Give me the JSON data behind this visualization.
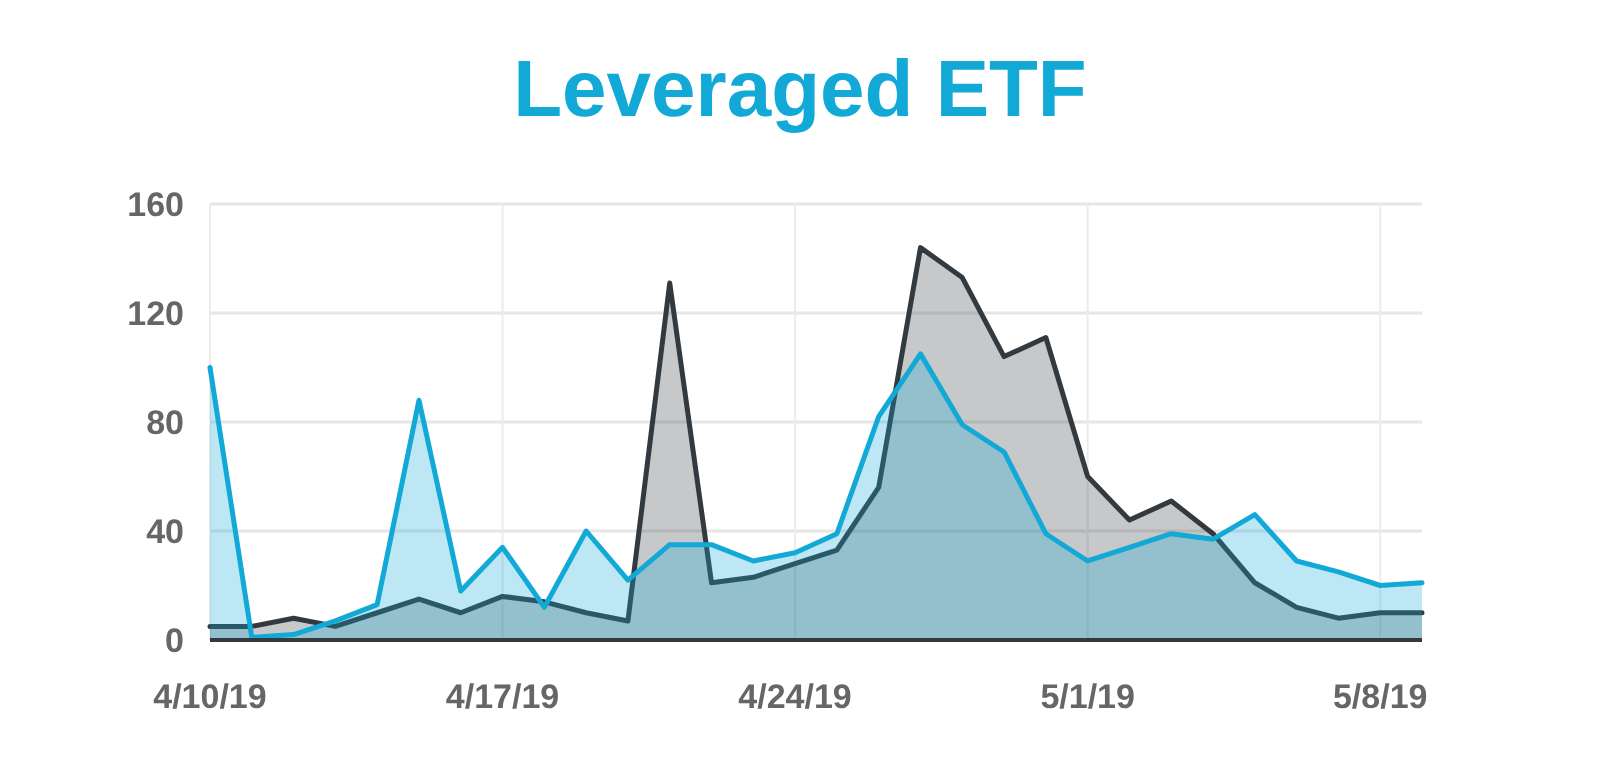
{
  "chart_data": {
    "type": "area",
    "title": "Leveraged ETF",
    "x": [
      "--04-10",
      "--04-11",
      "--04-12",
      "--04-13",
      "--04-14",
      "--04-15",
      "--04-16",
      "--04-17",
      "--04-18",
      "--04-19",
      "--04-20",
      "--04-21",
      "--04-22",
      "--04-23",
      "--04-24",
      "--04-25",
      "--04-26",
      "--04-27",
      "--04-28",
      "--04-29",
      "--04-30",
      "--05-01",
      "--05-02",
      "--05-03",
      "--05-04",
      "--05-05",
      "--05-06",
      "--05-07",
      "--05-08",
      "--05-09"
    ],
    "series": [
      {
        "color": "#333a3f",
        "values": [
          5,
          5,
          8,
          5,
          10,
          15,
          10,
          16,
          14,
          10,
          7,
          131,
          21,
          23,
          28,
          33,
          56,
          144,
          133,
          104,
          111,
          60,
          44,
          51,
          39,
          21,
          12,
          8,
          10,
          10
        ]
      },
      {
        "color": "#12a9d6",
        "values": [
          100,
          1,
          2,
          7,
          13,
          88,
          18,
          34,
          12,
          40,
          22,
          35,
          35,
          29,
          32,
          39,
          82,
          105,
          79,
          69,
          39,
          29,
          34,
          39,
          37,
          46,
          29,
          25,
          20,
          21
        ]
      }
    ],
    "xlim": [
      "--04-10",
      "--05-09"
    ],
    "xticks": [
      {
        "value": "--04-10",
        "label": "4/10/19"
      },
      {
        "value": "--04-17",
        "label": "4/17/19"
      },
      {
        "value": "--04-24",
        "label": "4/24/19"
      },
      {
        "value": "--05-01",
        "label": "5/1/19"
      },
      {
        "value": "--05-08",
        "label": "5/8/19"
      }
    ],
    "ylim": [
      0,
      160
    ],
    "yticks": [
      0,
      40,
      80,
      120,
      160
    ],
    "grid": true,
    "marker": "none",
    "line_style": "solid"
  }
}
